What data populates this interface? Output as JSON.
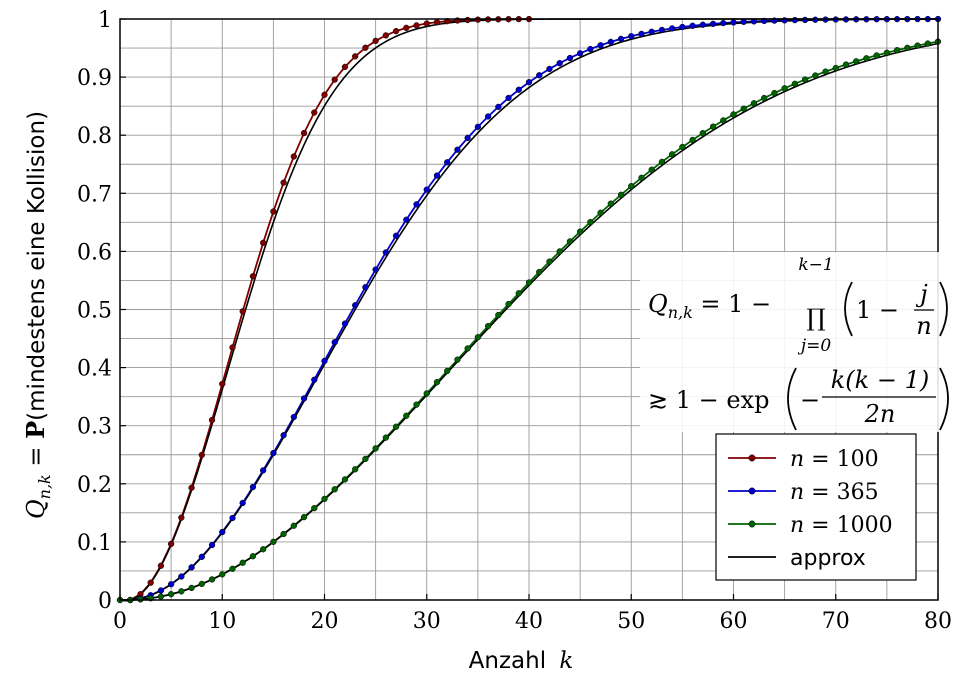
{
  "chart_data": {
    "type": "line",
    "xlabel": "Anzahl k",
    "ylabel": "Q_{n,k} = P(mindestens eine Kollision)",
    "xlabel_text": "Anzahl",
    "xlabel_var": "k",
    "ylabel_prefix": "Q",
    "ylabel_sub": "n,k",
    "ylabel_eq": " = ",
    "ylabel_bold": "P",
    "ylabel_rest": "(mindestens eine Kollision)",
    "xlim": [
      0,
      80
    ],
    "ylim": [
      0,
      1
    ],
    "x_ticks": [
      0,
      10,
      20,
      30,
      40,
      50,
      60,
      70,
      80
    ],
    "x_tick_labels": [
      "0",
      "10",
      "20",
      "30",
      "40",
      "50",
      "60",
      "70",
      "80"
    ],
    "y_ticks": [
      0,
      0.1,
      0.2,
      0.3,
      0.4,
      0.5,
      0.6,
      0.7,
      0.8,
      0.9,
      1
    ],
    "y_tick_labels": [
      "0",
      "0.1",
      "0.2",
      "0.3",
      "0.4",
      "0.5",
      "0.6",
      "0.7",
      "0.8",
      "0.9",
      "1"
    ],
    "grid": true,
    "legend_position": "bottom-right",
    "series": [
      {
        "name": "n = 100",
        "n": 100,
        "color": "#800000",
        "marker": "circle",
        "k_max": 40
      },
      {
        "name": "n = 365",
        "n": 365,
        "color": "#0000cc",
        "marker": "circle",
        "k_max": 80
      },
      {
        "name": "n = 1000",
        "n": 1000,
        "color": "#006400",
        "marker": "circle",
        "k_max": 80
      },
      {
        "name": "approx",
        "color": "#000000",
        "marker": "none",
        "formula": "1 - exp(-k(k-1)/(2n))",
        "applies_to": [
          100,
          365,
          1000
        ]
      }
    ],
    "legend": {
      "entries": [
        {
          "label_var": "n",
          "label_rest": " = 100",
          "color": "#800000",
          "marker": true
        },
        {
          "label_var": "n",
          "label_rest": " = 365",
          "color": "#0000cc",
          "marker": true
        },
        {
          "label_var": "n",
          "label_rest": " = 1000",
          "color": "#006400",
          "marker": true
        },
        {
          "label_text": "approx",
          "color": "#000000",
          "marker": false
        }
      ]
    },
    "annotation": {
      "line1": {
        "lhs": "Q",
        "lhs_sub": "n,k",
        "eq": " = 1 − ",
        "prod_symbol": "∏",
        "prod_upper": "k−1",
        "prod_lower": "j=0",
        "paren_inner": "1 − ",
        "frac_num": "j",
        "frac_den": "n"
      },
      "line2": {
        "approx_sym": "≳",
        "expr": " 1 − exp",
        "minus": "−",
        "frac_num": "k(k − 1)",
        "frac_den": "2n"
      }
    }
  }
}
